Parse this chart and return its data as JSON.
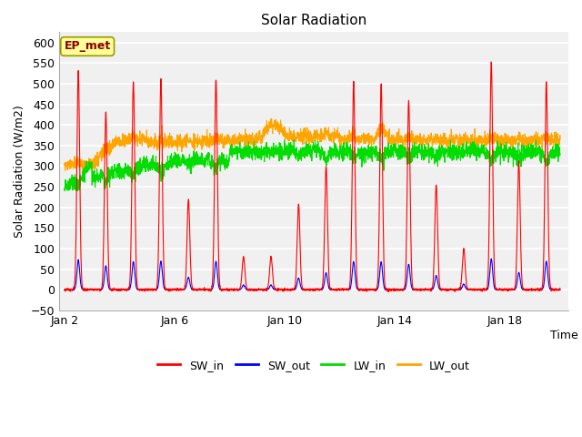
{
  "title": "Solar Radiation",
  "ylabel": "Solar Radiation (W/m2)",
  "xlabel": "Time",
  "ylim": [
    -50,
    625
  ],
  "yticks": [
    -50,
    0,
    50,
    100,
    150,
    200,
    250,
    300,
    350,
    400,
    450,
    500,
    550,
    600
  ],
  "start_day": 2,
  "end_day": 20,
  "colors": {
    "SW_in": "#FF0000",
    "SW_out": "#0000FF",
    "LW_in": "#00DD00",
    "LW_out": "#FFA500"
  },
  "label_box": "EP_met",
  "label_box_color": "#FFFF99",
  "label_box_text_color": "#880000",
  "plot_bg_color": "#F0F0F0",
  "grid_color": "#FFFFFF",
  "xtick_labels": [
    "Jan 2",
    "Jan 6",
    "Jan 10",
    "Jan 14",
    "Jan 18"
  ],
  "xtick_positions": [
    2,
    6,
    10,
    14,
    18
  ],
  "legend_items": [
    "SW_in",
    "SW_out",
    "LW_in",
    "LW_out"
  ]
}
